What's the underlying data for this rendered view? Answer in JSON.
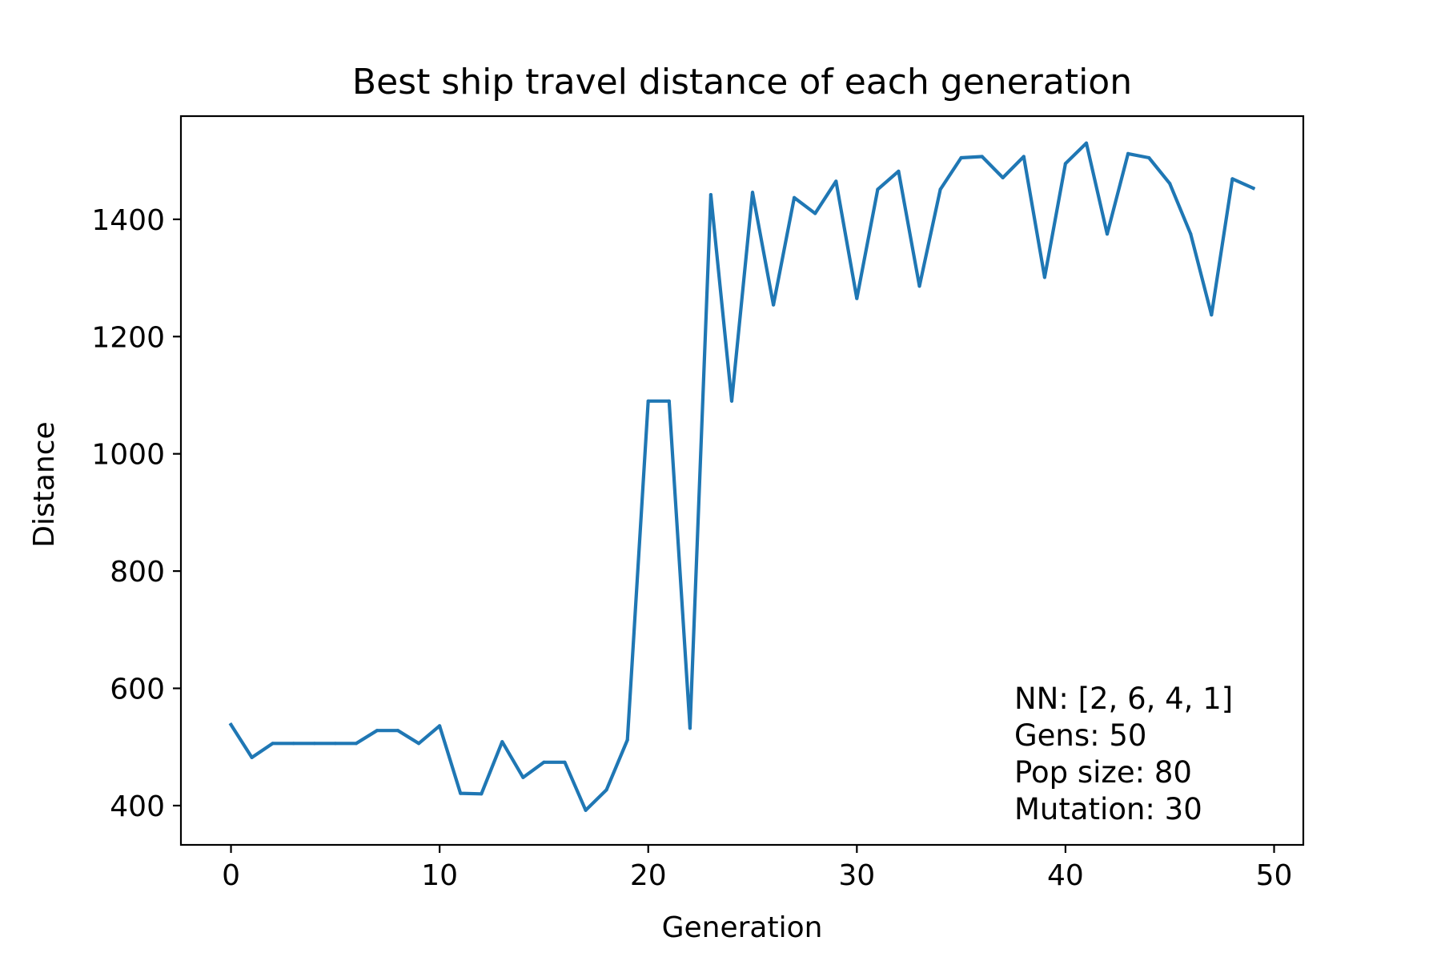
{
  "chart_data": {
    "type": "line",
    "title": "Best ship travel distance of each generation",
    "xlabel": "Generation",
    "ylabel": "Distance",
    "xlim": [
      -2.4,
      51.4
    ],
    "ylim": [
      333,
      1576
    ],
    "xticks": [
      0,
      10,
      20,
      30,
      40,
      50
    ],
    "yticks": [
      400,
      600,
      800,
      1000,
      1200,
      1400
    ],
    "x_tick_labels": [
      "0",
      "10",
      "20",
      "30",
      "40",
      "50"
    ],
    "y_tick_labels": [
      "400",
      "600",
      "800",
      "1000",
      "1200",
      "1400"
    ],
    "grid": false,
    "series": [
      {
        "color": "#1f77b4",
        "x": [
          0,
          1,
          2,
          3,
          4,
          5,
          6,
          7,
          8,
          9,
          10,
          11,
          12,
          13,
          14,
          15,
          16,
          17,
          18,
          19,
          20,
          21,
          22,
          23,
          24,
          25,
          26,
          27,
          28,
          29,
          30,
          31,
          32,
          33,
          34,
          35,
          36,
          37,
          38,
          39,
          40,
          41,
          42,
          43,
          44,
          45,
          46,
          47,
          48,
          49
        ],
        "values": [
          538,
          482,
          506,
          506,
          506,
          506,
          506,
          528,
          528,
          506,
          536,
          421,
          420,
          509,
          448,
          474,
          474,
          392,
          427,
          512,
          1090,
          1090,
          532,
          1442,
          1090,
          1446,
          1254,
          1437,
          1410,
          1465,
          1265,
          1451,
          1482,
          1286,
          1451,
          1505,
          1507,
          1471,
          1507,
          1301,
          1495,
          1530,
          1375,
          1512,
          1505,
          1461,
          1375,
          1237,
          1469,
          1453
        ]
      }
    ],
    "annotation": [
      "NN: [2, 6, 4, 1]",
      "Gens: 50",
      "Pop size: 80",
      "Mutation: 30"
    ]
  }
}
